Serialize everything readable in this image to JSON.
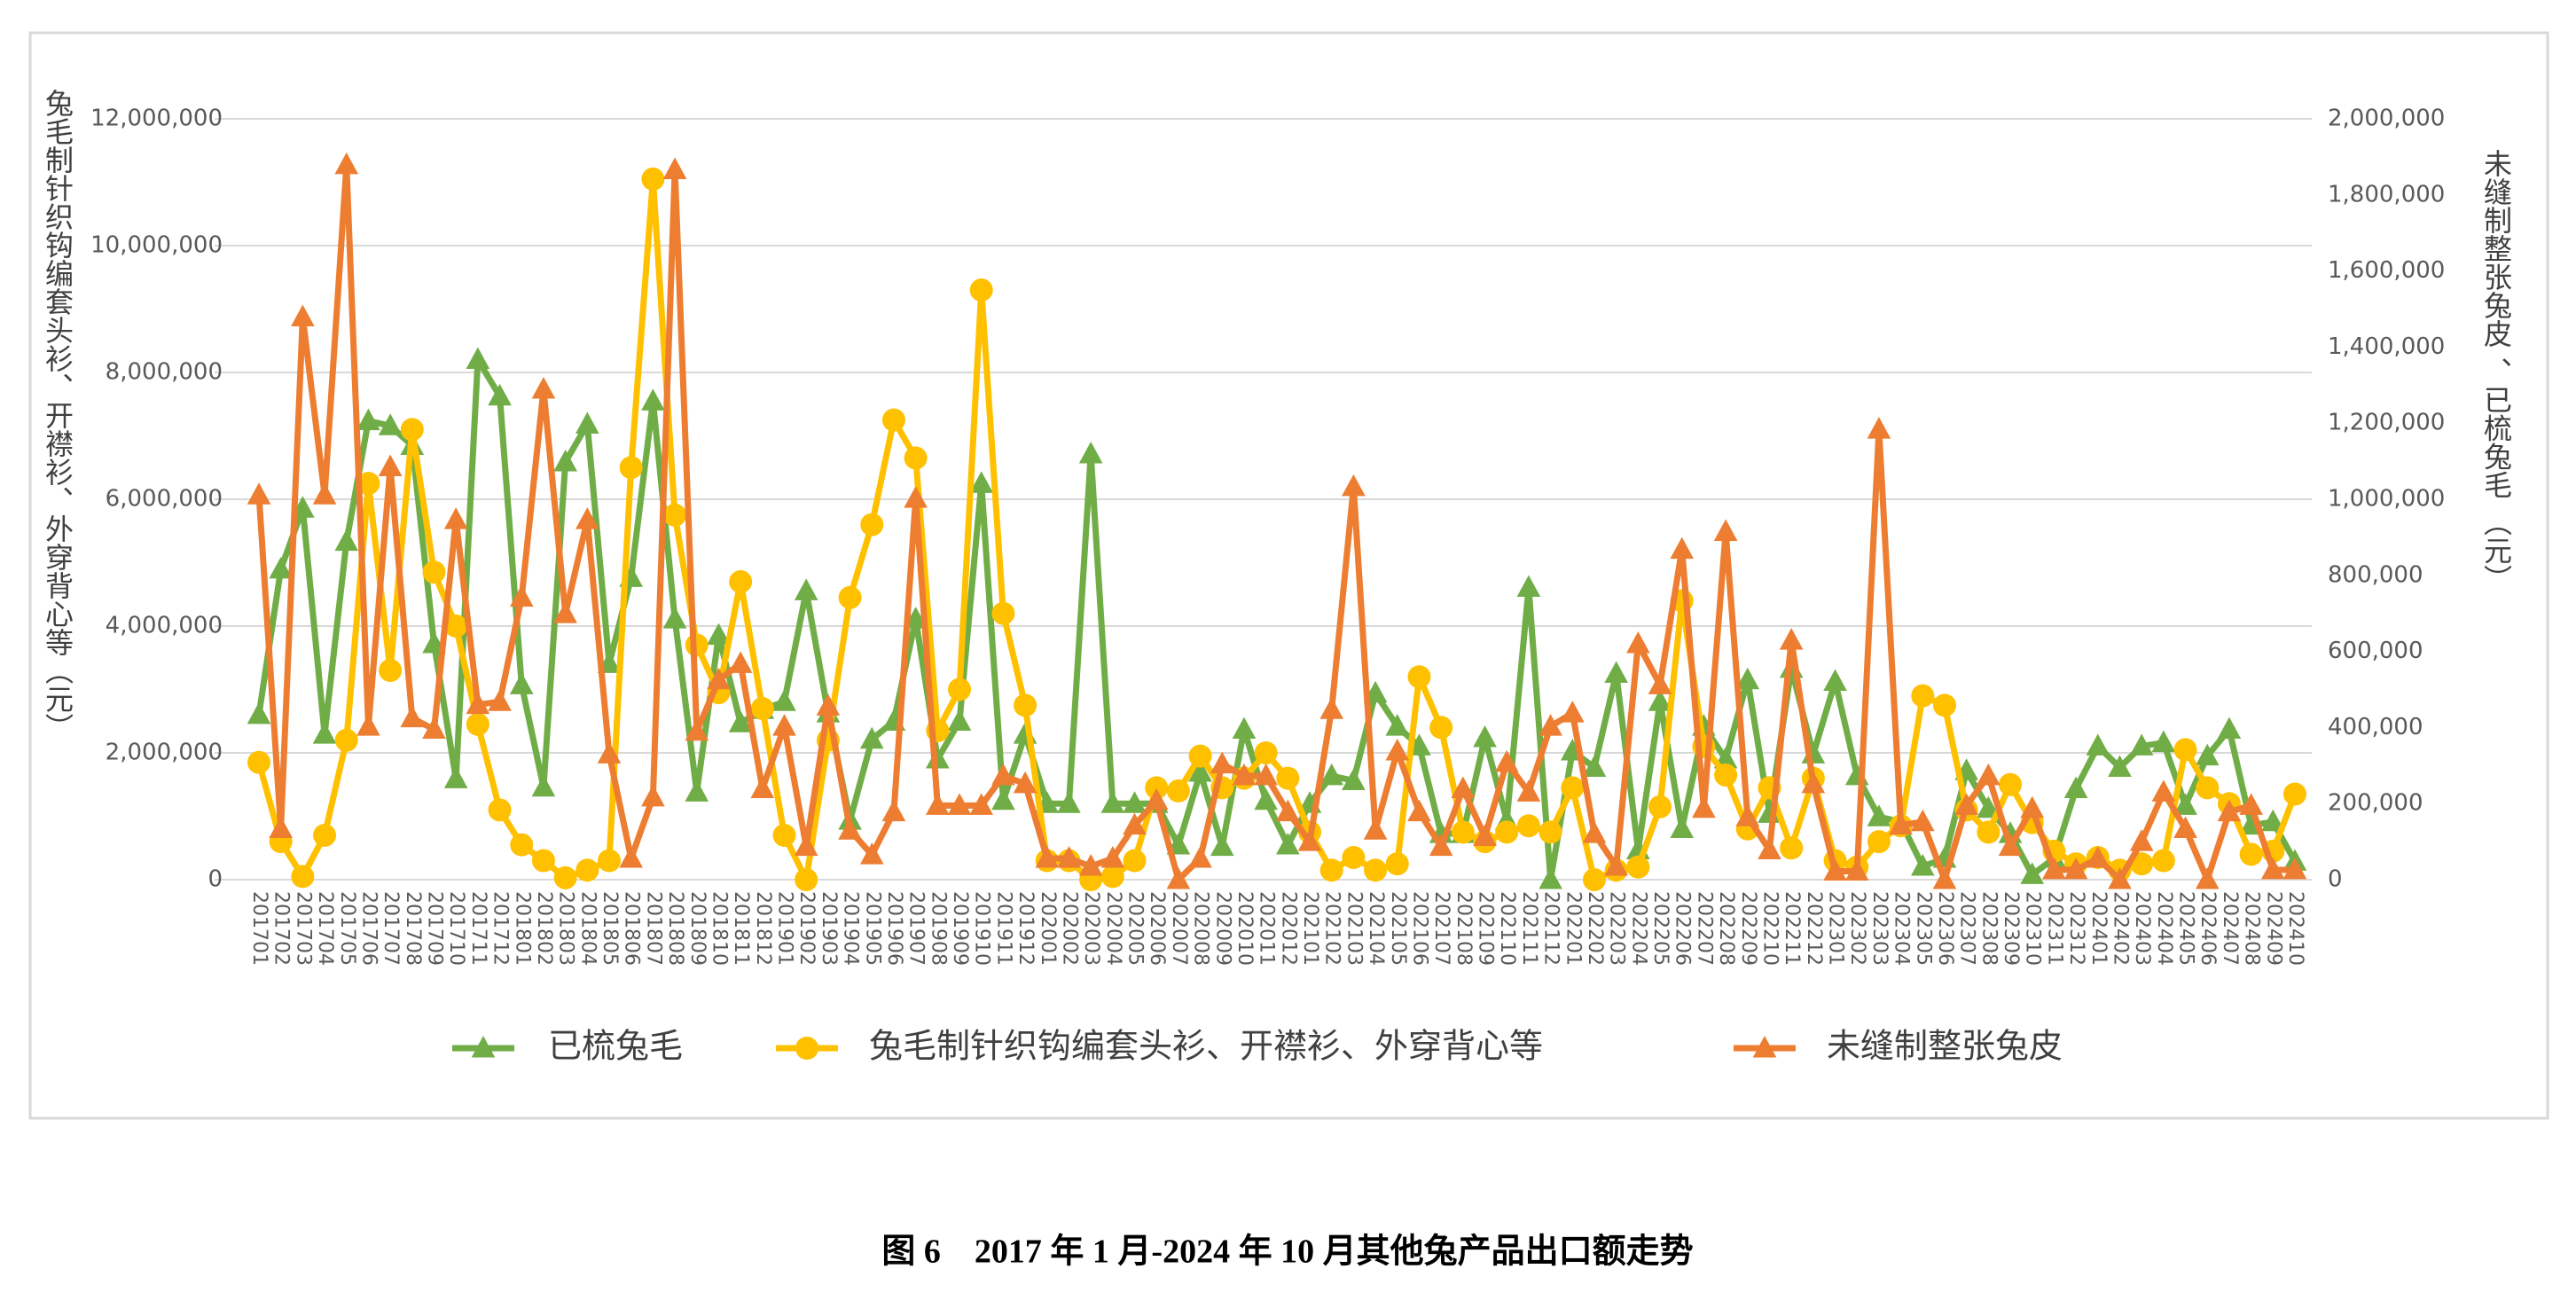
{
  "chart_data": {
    "type": "line",
    "categories": [
      "201701",
      "201702",
      "201703",
      "201704",
      "201705",
      "201706",
      "201707",
      "201708",
      "201709",
      "201710",
      "201711",
      "201712",
      "201801",
      "201802",
      "201803",
      "201804",
      "201805",
      "201806",
      "201807",
      "201808",
      "201809",
      "201810",
      "201811",
      "201812",
      "201901",
      "201902",
      "201903",
      "201904",
      "201905",
      "201906",
      "201907",
      "201908",
      "201909",
      "201910",
      "201911",
      "201912",
      "202001",
      "202002",
      "202003",
      "202004",
      "202005",
      "202006",
      "202007",
      "202008",
      "202009",
      "202010",
      "202011",
      "202012",
      "202101",
      "202102",
      "202103",
      "202104",
      "202105",
      "202106",
      "202107",
      "202108",
      "202109",
      "202110",
      "202111",
      "202112",
      "202201",
      "202202",
      "202203",
      "202204",
      "202205",
      "202206",
      "202207",
      "202208",
      "202209",
      "202210",
      "202211",
      "202212",
      "202301",
      "202302",
      "202303",
      "202304",
      "202305",
      "202306",
      "202307",
      "202308",
      "202309",
      "202310",
      "202311",
      "202312",
      "202401",
      "202402",
      "202403",
      "202404",
      "202405",
      "202406",
      "202407",
      "202408",
      "202409",
      "202410"
    ],
    "series": [
      {
        "name": "已梳兔毛",
        "color": "#70ad47",
        "marker": "triangle",
        "axis": "y2",
        "values": [
          434000,
          816000,
          976000,
          382000,
          889000,
          1206000,
          1193000,
          1141000,
          620000,
          265000,
          1367000,
          1271000,
          512000,
          243000,
          1098000,
          1197000,
          568000,
          794000,
          1258000,
          685000,
          230000,
          642000,
          412000,
          447000,
          468000,
          759000,
          438000,
          156000,
          369000,
          416000,
          685000,
          317000,
          416000,
          1041000,
          208000,
          382000,
          200000,
          200000,
          1119000,
          200000,
          200000,
          200000,
          91000,
          282000,
          87000,
          395000,
          208000,
          91000,
          200000,
          273000,
          260000,
          490000,
          403000,
          351000,
          121000,
          121000,
          373000,
          156000,
          768000,
          0,
          338000,
          295000,
          542000,
          78000,
          468000,
          134000,
          403000,
          317000,
          525000,
          174000,
          555000,
          330000,
          521000,
          273000,
          165000,
          152000,
          35000,
          56000,
          286000,
          187000,
          121000,
          13000,
          56000,
          239000,
          351000,
          295000,
          351000,
          360000,
          195000,
          325000,
          395000,
          143000,
          152000,
          48000
        ]
      },
      {
        "name": "兔毛制针织钩编套头衫、开襟衫、外穿背心等",
        "color": "#ffc000",
        "marker": "circle",
        "axis": "y",
        "values": [
          1850000,
          600000,
          50000,
          700000,
          2200000,
          6250000,
          3300000,
          7100000,
          4850000,
          4000000,
          2450000,
          1100000,
          550000,
          300000,
          30000,
          150000,
          300000,
          6500000,
          11050000,
          5750000,
          3700000,
          2950000,
          4700000,
          2700000,
          700000,
          0,
          2200000,
          4450000,
          5600000,
          7250000,
          6650000,
          2350000,
          3000000,
          9300000,
          4200000,
          2750000,
          300000,
          300000,
          0,
          50000,
          300000,
          1450000,
          1400000,
          1950000,
          1450000,
          1600000,
          2000000,
          1600000,
          750000,
          150000,
          350000,
          150000,
          250000,
          3200000,
          2400000,
          750000,
          600000,
          750000,
          850000,
          750000,
          1450000,
          0,
          150000,
          200000,
          1150000,
          4400000,
          2100000,
          1650000,
          800000,
          1450000,
          500000,
          1600000,
          300000,
          200000,
          600000,
          850000,
          2900000,
          2750000,
          1100000,
          750000,
          1500000,
          900000,
          450000,
          250000,
          350000,
          150000,
          250000,
          300000,
          2050000,
          1450000,
          1200000,
          400000,
          450000,
          1350000
        ]
      },
      {
        "name": "未缝制整张兔皮",
        "color": "#ed7d31",
        "marker": "triangle",
        "axis": "y2",
        "values": [
          1011000,
          134000,
          1479000,
          1011000,
          1879000,
          403000,
          1085000,
          425000,
          395000,
          946000,
          460000,
          468000,
          742000,
          1289000,
          699000,
          946000,
          330000,
          56000,
          217000,
          1866000,
          390000,
          525000,
          568000,
          239000,
          403000,
          87000,
          456000,
          130000,
          65000,
          178000,
          1002000,
          195000,
          195000,
          195000,
          273000,
          252000,
          56000,
          56000,
          35000,
          56000,
          143000,
          208000,
          0,
          56000,
          304000,
          273000,
          273000,
          178000,
          100000,
          447000,
          1033000,
          130000,
          338000,
          178000,
          87000,
          239000,
          113000,
          308000,
          230000,
          403000,
          438000,
          121000,
          35000,
          620000,
          512000,
          868000,
          187000,
          915000,
          165000,
          78000,
          629000,
          252000,
          22000,
          22000,
          1184000,
          143000,
          152000,
          0,
          195000,
          273000,
          87000,
          187000,
          26000,
          26000,
          56000,
          0,
          100000,
          230000,
          134000,
          0,
          178000,
          195000,
          26000,
          26000
        ]
      }
    ],
    "ylim": [
      0,
      12000000
    ],
    "yticks": [
      0,
      {
        "value": 2000000,
        "label": "2,000,000"
      },
      {
        "value": 4000000,
        "label": "4,000,000"
      },
      {
        "value": 6000000,
        "label": "6,000,000"
      },
      {
        "value": 8000000,
        "label": "8,000,000"
      },
      {
        "value": 10000000,
        "label": "10,000,000"
      },
      {
        "value": 12000000,
        "label": "12,000,000"
      }
    ],
    "y2lim": [
      0,
      2000000
    ],
    "y2ticks": [
      0,
      {
        "value": 200000,
        "label": "200,000"
      },
      {
        "value": 400000,
        "label": "400,000"
      },
      {
        "value": 600000,
        "label": "600,000"
      },
      {
        "value": 800000,
        "label": "800,000"
      },
      {
        "value": 1000000,
        "label": "1,000,000"
      },
      {
        "value": 1200000,
        "label": "1,200,000"
      },
      {
        "value": 1400000,
        "label": "1,400,000"
      },
      {
        "value": 1600000,
        "label": "1,600,000"
      },
      {
        "value": 1800000,
        "label": "1,800,000"
      },
      {
        "value": 2000000,
        "label": "2,000,000"
      }
    ],
    "ylabel": "兔毛制针织钩编套头衫、开襟衫、外穿背心等（元）",
    "y2label": "未缝制整张兔皮 、已梳兔毛 （元）",
    "grid": true,
    "legend": "bottom",
    "caption": "图 6　2017 年 1 月-2024 年 10 月其他兔产品出口额走势"
  }
}
